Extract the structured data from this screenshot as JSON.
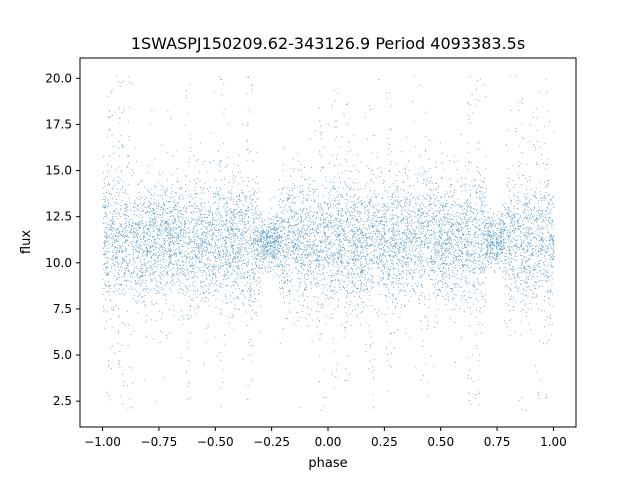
{
  "chart_data": {
    "type": "scatter",
    "title": "1SWASPJ150209.62-343126.9 Period 4093383.5s",
    "xlabel": "phase",
    "ylabel": "flux",
    "xlim": [
      -1.1,
      1.1
    ],
    "ylim": [
      1.1,
      21.1
    ],
    "x_ticks": [
      "−1.00",
      "−0.75",
      "−0.50",
      "−0.25",
      "0.00",
      "0.25",
      "0.50",
      "0.75",
      "1.00"
    ],
    "x_tick_values": [
      -1.0,
      -0.75,
      -0.5,
      -0.25,
      0.0,
      0.25,
      0.5,
      0.75,
      1.0
    ],
    "y_ticks": [
      "2.5",
      "5.0",
      "7.5",
      "10.0",
      "12.5",
      "15.0",
      "17.5",
      "20.0"
    ],
    "y_tick_values": [
      2.5,
      5.0,
      7.5,
      10.0,
      12.5,
      15.0,
      17.5,
      20.0
    ],
    "grid": false,
    "legend": "none",
    "marker_color": "#1f77b4",
    "series": [
      {
        "profile_note": "phase-folded light curve, data repeated over phase -1 to 1",
        "x_range": [
          -1.0,
          1.0
        ],
        "baseline_flux": 11.2,
        "flux_min": 2.0,
        "flux_max": 20.2,
        "core_band": [
          8.0,
          14.5
        ],
        "quiet_windows_phase": [
          [
            -0.3,
            -0.22
          ],
          [
            0.7,
            0.78
          ]
        ],
        "bright_spike_phases": [
          -0.97,
          -0.92,
          -0.88,
          -0.62,
          -0.47,
          -0.35,
          -0.03,
          0.03,
          0.08,
          0.19,
          0.27,
          0.43,
          0.63,
          0.66,
          0.85,
          0.93,
          0.97
        ]
      }
    ]
  }
}
